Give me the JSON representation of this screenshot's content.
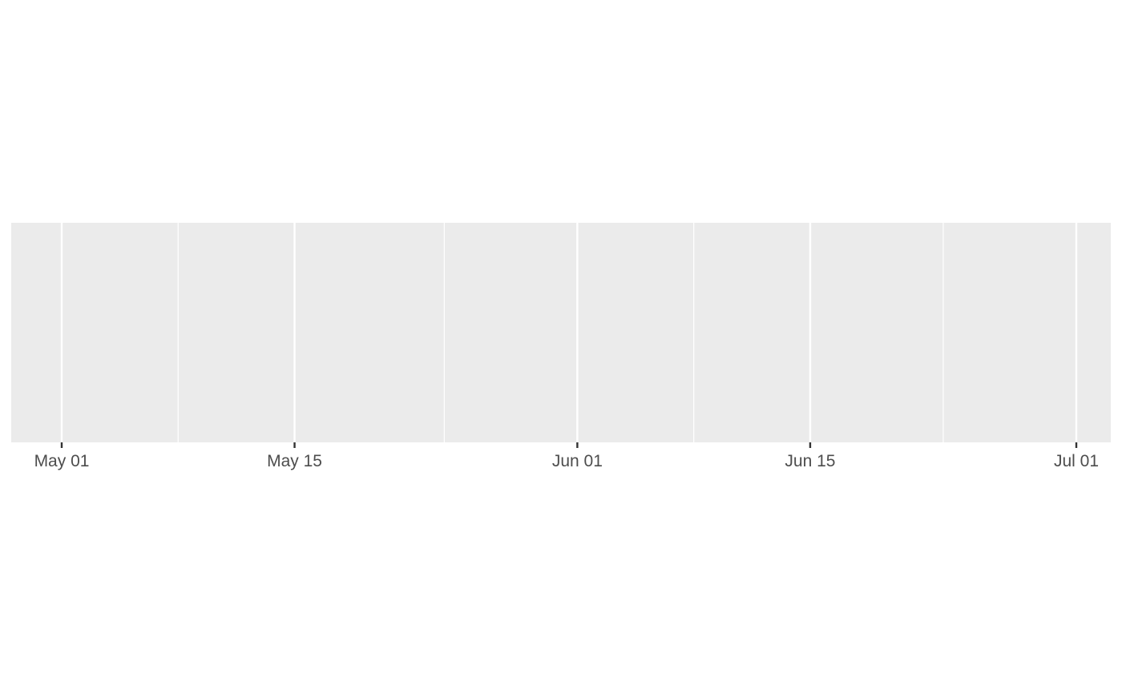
{
  "chart_data": {
    "type": "line",
    "title": "",
    "xlabel": "",
    "ylabel": "",
    "x_axis": {
      "kind": "date",
      "range": [
        "2020-04-28",
        "2020-07-02"
      ],
      "major_ticks": [
        {
          "date": "2020-05-01",
          "label": "May 01"
        },
        {
          "date": "2020-05-15",
          "label": "May 15"
        },
        {
          "date": "2020-06-01",
          "label": "Jun 01"
        },
        {
          "date": "2020-06-15",
          "label": "Jun 15"
        },
        {
          "date": "2020-07-01",
          "label": "Jul 01"
        }
      ],
      "minor_gridlines": [
        "2020-05-08",
        "2020-05-24",
        "2020-06-08",
        "2020-06-23"
      ]
    },
    "y_axis": {
      "visible": false
    },
    "series": [],
    "grid": true,
    "panel_background": "#ebebeb",
    "gridline_color": "#ffffff",
    "tick_label_color": "#4d4d4d",
    "tick_color": "#333333"
  }
}
